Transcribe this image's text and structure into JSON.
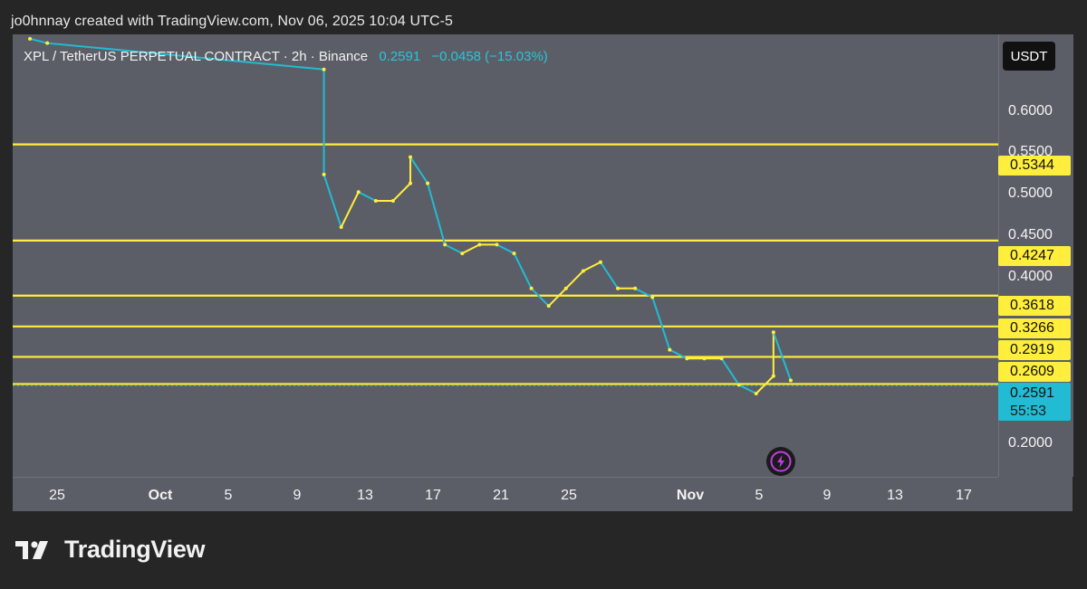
{
  "credit": "jo0hnnay created with TradingView.com, Nov 06, 2025 10:04 UTC-5",
  "legend": {
    "symbol": "XPL / TetherUS PERPETUAL CONTRACT · 2h · Binance",
    "last": "0.2591",
    "change": "−0.0458 (−15.03%)"
  },
  "currency": "USDT",
  "brand": "TradingView",
  "colors": {
    "background": "#5c5e67",
    "levels": "#ffee3b",
    "price_line": "#21bcd3",
    "candles_up": "#ffee3b",
    "candles_down": "#21bcd3"
  },
  "icons": {
    "bolt": "lightning-bolt-icon",
    "brand_logo": "tradingview-logo-icon"
  },
  "chart_data": {
    "type": "line",
    "x_unit": "date",
    "xlim": [
      "2025-09-22",
      "2025-11-18"
    ],
    "ylim": [
      0.155,
      0.66
    ],
    "y_tick_labels": [
      "0.6000",
      "0.5500",
      "0.5000",
      "0.4500",
      "0.4000",
      "0.2000"
    ],
    "x_tick_labels": [
      "25",
      "Oct",
      "5",
      "9",
      "13",
      "17",
      "21",
      "25",
      "Nov",
      "5",
      "9",
      "13",
      "17"
    ],
    "horizontal_levels": [
      "0.5344",
      "0.4247",
      "0.3618",
      "0.3266",
      "0.2919",
      "0.2609"
    ],
    "last_price": "0.2591",
    "countdown": "55:53",
    "series": [
      {
        "x": [
          "2025-09-23",
          "2025-09-24",
          "2025-10-10",
          "2025-10-10",
          "2025-10-11",
          "2025-10-12",
          "2025-10-13",
          "2025-10-14",
          "2025-10-15",
          "2025-10-15",
          "2025-10-16",
          "2025-10-17",
          "2025-10-18",
          "2025-10-19",
          "2025-10-20",
          "2025-10-21",
          "2025-10-22",
          "2025-10-23",
          "2025-10-24",
          "2025-10-25",
          "2025-10-26",
          "2025-10-27",
          "2025-10-28",
          "2025-10-29",
          "2025-10-30",
          "2025-10-31",
          "2025-11-01",
          "2025-11-02",
          "2025-11-03",
          "2025-11-04",
          "2025-11-05",
          "2025-11-05",
          "2025-11-06"
        ],
        "y": [
          0.655,
          0.65,
          0.62,
          0.5,
          0.44,
          0.48,
          0.47,
          0.47,
          0.49,
          0.52,
          0.49,
          0.42,
          0.41,
          0.42,
          0.42,
          0.41,
          0.37,
          0.35,
          0.37,
          0.39,
          0.4,
          0.37,
          0.37,
          0.36,
          0.3,
          0.29,
          0.29,
          0.29,
          0.26,
          0.25,
          0.27,
          0.32,
          0.265
        ]
      }
    ]
  }
}
